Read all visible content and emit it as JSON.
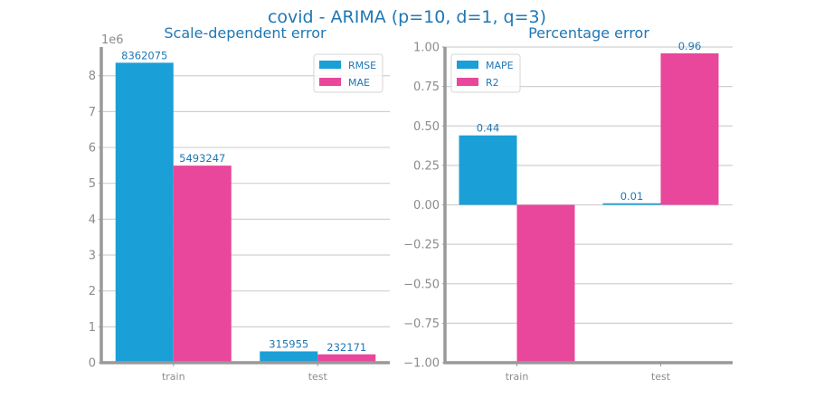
{
  "suptitle": "covid - ARIMA (p=10, d=1, q=3)",
  "colors": {
    "series1": "#1a9fd6",
    "series2": "#e8479b",
    "text": "#1f77b4",
    "grid": "#d0d0d0",
    "axis": "#999999",
    "tick": "#8c8c8c"
  },
  "chart_data": [
    {
      "type": "bar",
      "title": "Scale-dependent error",
      "categories": [
        "train",
        "test"
      ],
      "series": [
        {
          "name": "RMSE",
          "values": [
            8362075,
            315955
          ],
          "labels": [
            "8362075",
            "315955"
          ]
        },
        {
          "name": "MAE",
          "values": [
            5493247,
            232171
          ],
          "labels": [
            "5493247",
            "232171"
          ]
        }
      ],
      "ylim": [
        0,
        8800000
      ],
      "yticks": [
        0,
        1000000,
        2000000,
        3000000,
        4000000,
        5000000,
        6000000,
        7000000,
        8000000
      ],
      "ytick_labels": [
        "0",
        "1",
        "2",
        "3",
        "4",
        "5",
        "6",
        "7",
        "8"
      ],
      "y_offset_label": "1e6",
      "grid": "horizontal",
      "legend_position": "top-right"
    },
    {
      "type": "bar",
      "title": "Percentage error",
      "categories": [
        "train",
        "test"
      ],
      "series": [
        {
          "name": "MAPE",
          "values": [
            0.44,
            0.01
          ],
          "labels": [
            "0.44",
            "0.01"
          ]
        },
        {
          "name": "R2",
          "values": [
            -1.0,
            0.96
          ],
          "labels": [
            null,
            "0.96"
          ]
        }
      ],
      "ylim": [
        -1.0,
        1.0
      ],
      "yticks": [
        -1.0,
        -0.75,
        -0.5,
        -0.25,
        0.0,
        0.25,
        0.5,
        0.75,
        1.0
      ],
      "ytick_labels": [
        "−1.00",
        "−0.75",
        "−0.50",
        "−0.25",
        "0.00",
        "0.25",
        "0.50",
        "0.75",
        "1.00"
      ],
      "grid": "horizontal",
      "legend_position": "top-left"
    }
  ]
}
